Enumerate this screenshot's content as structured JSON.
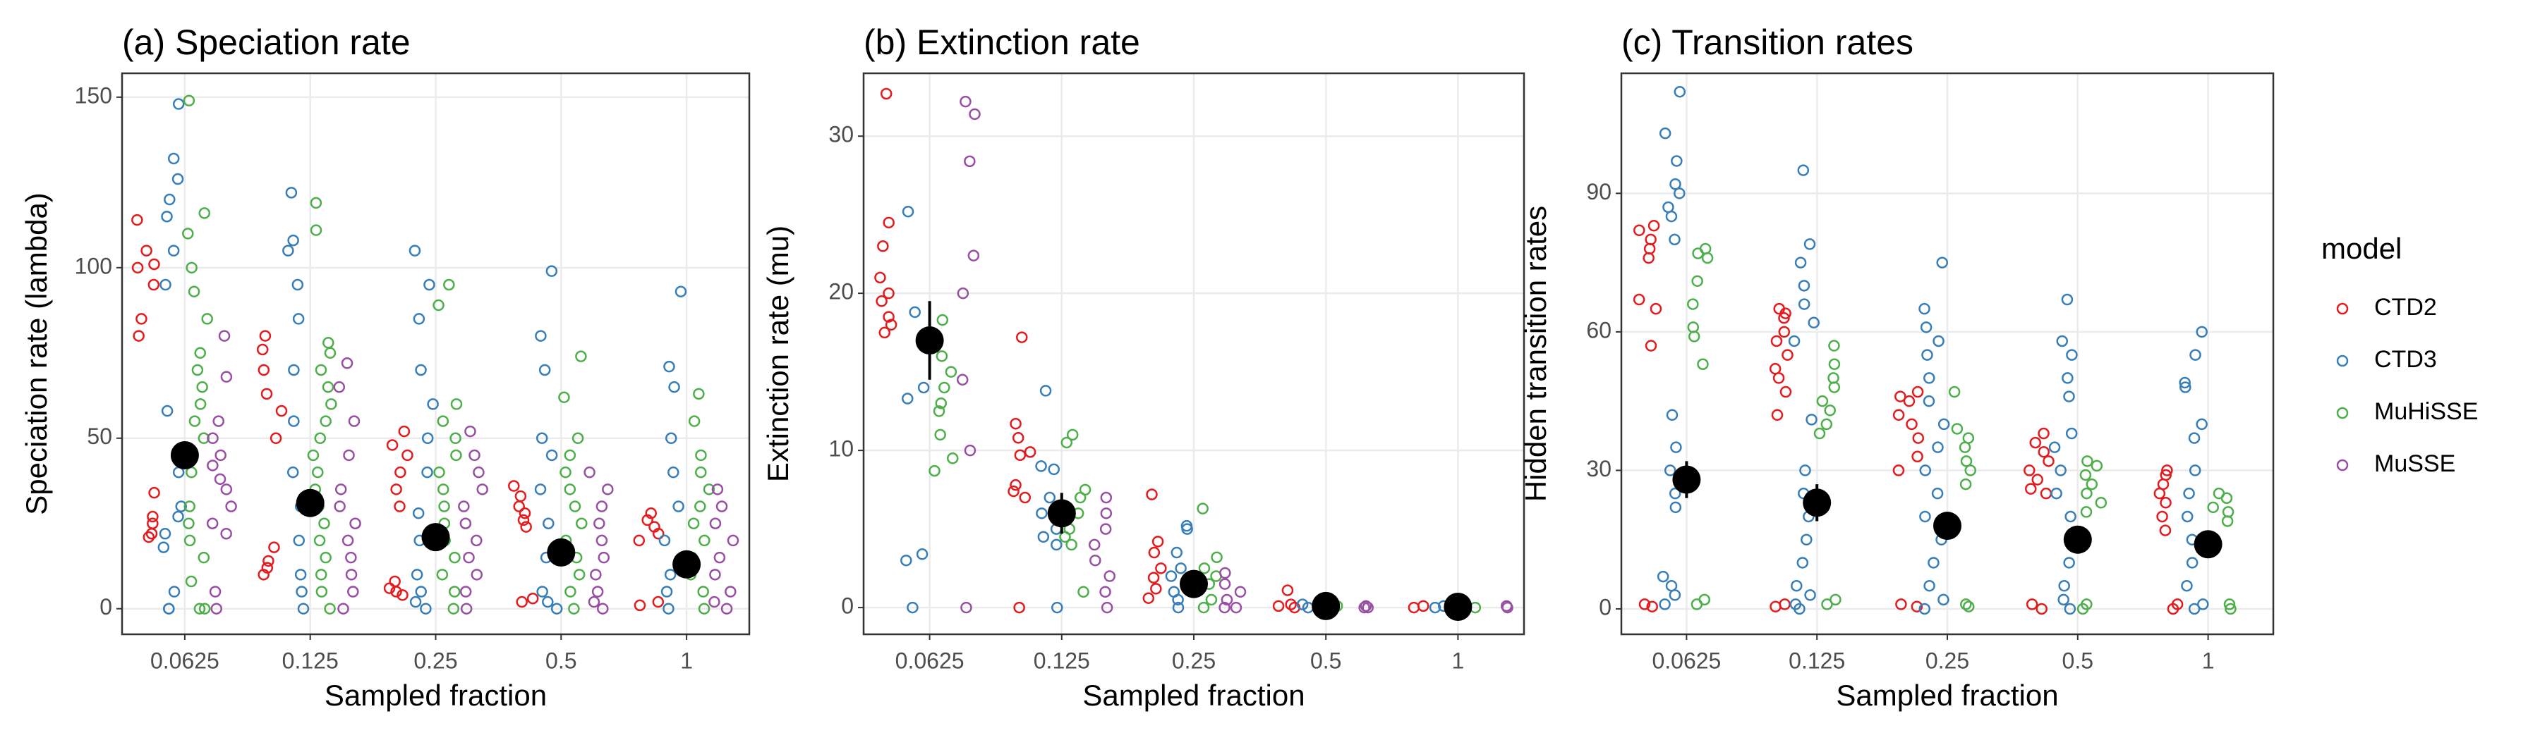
{
  "chart_data": [
    {
      "type": "scatter",
      "title": "(a) Speciation rate",
      "xlabel": "Sampled fraction",
      "ylabel": "Speciation rate (lambda)",
      "categories": [
        "0.0625",
        "0.125",
        "0.25",
        "0.5",
        "1"
      ],
      "ylim": [
        -7.5,
        157
      ],
      "yticks": [
        0,
        50,
        100,
        150
      ],
      "grid": true,
      "legend": "none",
      "series": [
        {
          "name": "CTD2",
          "color": "#e41a1c",
          "values": [
            [
              114,
              105,
              101,
              100,
              95,
              85,
              80,
              34,
              27,
              25,
              22,
              21
            ],
            [
              80,
              76,
              70,
              63,
              58,
              50,
              18,
              14,
              12,
              10
            ],
            [
              52,
              48,
              45,
              40,
              35,
              30,
              8,
              6,
              5,
              4
            ],
            [
              36,
              33,
              30,
              28,
              26,
              24,
              3,
              2
            ],
            [
              28,
              26,
              24,
              22,
              20,
              2,
              1
            ]
          ]
        },
        {
          "name": "CTD3",
          "color": "#377eb8",
          "values": [
            [
              148,
              132,
              126,
              120,
              115,
              105,
              95,
              58,
              40,
              30,
              27,
              22,
              18,
              5,
              0,
              0
            ],
            [
              122,
              108,
              105,
              95,
              85,
              70,
              55,
              40,
              30,
              20,
              10,
              5,
              0
            ],
            [
              105,
              95,
              85,
              70,
              60,
              50,
              40,
              28,
              20,
              10,
              5,
              2,
              0
            ],
            [
              99,
              80,
              70,
              50,
              45,
              35,
              25,
              15,
              5,
              2,
              0
            ],
            [
              93,
              71,
              65,
              50,
              40,
              30,
              20,
              10,
              5,
              0
            ]
          ]
        },
        {
          "name": "MuHiSSE",
          "color": "#4daf4a",
          "values": [
            [
              149,
              116,
              110,
              100,
              93,
              85,
              75,
              70,
              65,
              60,
              55,
              50,
              45,
              40,
              30,
              25,
              20,
              15,
              8,
              0,
              0
            ],
            [
              119,
              111,
              78,
              75,
              70,
              65,
              60,
              55,
              50,
              45,
              40,
              35,
              30,
              25,
              20,
              15,
              10,
              5,
              0
            ],
            [
              95,
              89,
              60,
              55,
              50,
              45,
              40,
              35,
              30,
              25,
              20,
              15,
              10,
              5,
              0
            ],
            [
              74,
              62,
              50,
              45,
              40,
              35,
              30,
              25,
              20,
              15,
              10,
              5,
              0
            ],
            [
              63,
              55,
              45,
              40,
              35,
              30,
              25,
              20,
              15,
              10,
              5,
              0
            ]
          ]
        },
        {
          "name": "MuSSE",
          "color": "#984ea3",
          "values": [
            [
              80,
              68,
              55,
              50,
              45,
              42,
              38,
              35,
              30,
              25,
              22,
              5,
              0
            ],
            [
              72,
              65,
              55,
              45,
              35,
              30,
              25,
              20,
              15,
              10,
              5,
              0
            ],
            [
              52,
              45,
              40,
              35,
              30,
              25,
              20,
              15,
              10,
              5,
              0
            ],
            [
              40,
              35,
              30,
              25,
              20,
              15,
              10,
              5,
              2,
              0
            ],
            [
              35,
              30,
              25,
              20,
              15,
              10,
              5,
              2,
              0
            ]
          ]
        }
      ],
      "summary": {
        "color": "#000000",
        "values": [
          45,
          31,
          21,
          16.5,
          13
        ],
        "errors": [
          3,
          3,
          2.5,
          2,
          2
        ]
      }
    },
    {
      "type": "scatter",
      "title": "(b) Extinction rate",
      "xlabel": "Sampled fraction",
      "ylabel": "Extinction rate (mu)",
      "categories": [
        "0.0625",
        "0.125",
        "0.25",
        "0.5",
        "1"
      ],
      "ylim": [
        -1.7,
        34
      ],
      "yticks": [
        0,
        10,
        20,
        30
      ],
      "grid": true,
      "legend": "none",
      "series": [
        {
          "name": "CTD2",
          "color": "#e41a1c",
          "values": [
            [
              32.7,
              24.5,
              23,
              21,
              20,
              19.5,
              18.5,
              18,
              17.5
            ],
            [
              17.2,
              11.7,
              10.8,
              9.9,
              9.7,
              7.8,
              7.4,
              7,
              0
            ],
            [
              7.2,
              4.2,
              3.5,
              2.5,
              1.9,
              1.2,
              0.6
            ],
            [
              1.1,
              0.2,
              0.1,
              0
            ],
            [
              0.1,
              0
            ]
          ]
        },
        {
          "name": "CTD3",
          "color": "#377eb8",
          "values": [
            [
              25.2,
              18.8,
              14,
              13.3,
              3.4,
              3,
              0
            ],
            [
              13.8,
              9,
              8.8,
              7,
              6,
              5,
              4.5,
              4,
              0
            ],
            [
              5.2,
              5,
              3.5,
              2.5,
              2,
              1,
              0.5,
              0
            ],
            [
              0.2,
              0.1,
              0
            ],
            [
              0.1,
              0
            ]
          ]
        },
        {
          "name": "MuHiSSE",
          "color": "#4daf4a",
          "values": [
            [
              18.3,
              16,
              15,
              14,
              13,
              12.5,
              11,
              9.5,
              8.7
            ],
            [
              11,
              10.5,
              7.5,
              7,
              6,
              5,
              4.5,
              4,
              1
            ],
            [
              6.3,
              3.2,
              2.5,
              2,
              1.5,
              0.5,
              0
            ],
            [
              0.1,
              0
            ],
            [
              0,
              0
            ]
          ]
        },
        {
          "name": "MuSSE",
          "color": "#984ea3",
          "values": [
            [
              32.2,
              31.4,
              28.4,
              22.4,
              20,
              14.5,
              10,
              0
            ],
            [
              7,
              6,
              5,
              4,
              3,
              2,
              1,
              0
            ],
            [
              2.2,
              1.5,
              1,
              0.5,
              0,
              0
            ],
            [
              0.1,
              0,
              0
            ],
            [
              0.1,
              0
            ]
          ]
        }
      ],
      "summary": {
        "color": "#000000",
        "values": [
          17,
          6,
          1.5,
          0.1,
          0.05
        ],
        "errors": [
          2.5,
          1.3,
          0.5,
          0.1,
          0.05
        ]
      }
    },
    {
      "type": "scatter",
      "title": "(c) Transition rates",
      "xlabel": "Sampled fraction",
      "ylabel": "Hidden transition rates",
      "categories": [
        "0.0625",
        "0.125",
        "0.25",
        "0.5",
        "1"
      ],
      "ylim": [
        -5.5,
        116
      ],
      "yticks": [
        0,
        30,
        60,
        90
      ],
      "grid": true,
      "legend": "right",
      "legend_title": "model",
      "series": [
        {
          "name": "CTD2",
          "color": "#e41a1c",
          "values": [
            [
              83,
              82,
              80,
              78,
              76,
              67,
              65,
              57,
              1,
              0.5
            ],
            [
              65,
              64,
              63,
              60,
              58,
              55,
              52,
              50,
              47,
              42,
              1,
              0.5
            ],
            [
              47,
              46,
              45,
              42,
              40,
              37,
              33,
              30,
              1,
              0.5
            ],
            [
              38,
              36,
              34,
              32,
              30,
              28,
              26,
              25,
              1,
              0
            ],
            [
              30,
              29,
              27,
              25,
              23,
              20,
              17,
              1,
              0
            ]
          ]
        },
        {
          "name": "CTD3",
          "color": "#377eb8",
          "values": [
            [
              112,
              103,
              97,
              92,
              90,
              87,
              85,
              80,
              42,
              35,
              30,
              25,
              22,
              7,
              5,
              3,
              1
            ],
            [
              95,
              79,
              75,
              70,
              66,
              62,
              58,
              41,
              30,
              25,
              20,
              15,
              10,
              5,
              3,
              1,
              0
            ],
            [
              75,
              65,
              61,
              58,
              55,
              50,
              45,
              40,
              35,
              30,
              25,
              20,
              15,
              10,
              5,
              2,
              0
            ],
            [
              67,
              58,
              55,
              50,
              46,
              38,
              35,
              30,
              25,
              20,
              15,
              10,
              5,
              2,
              0
            ],
            [
              60,
              55,
              49,
              48,
              40,
              37,
              30,
              25,
              20,
              15,
              10,
              5,
              1,
              0
            ]
          ]
        },
        {
          "name": "MuHiSSE",
          "color": "#4daf4a",
          "values": [
            [
              78,
              77,
              76,
              71,
              66,
              61,
              59,
              53,
              2,
              1
            ],
            [
              57,
              53,
              50,
              48,
              45,
              43,
              40,
              38,
              2,
              1
            ],
            [
              47,
              39,
              37,
              35,
              32,
              30,
              27,
              1,
              0.5
            ],
            [
              32,
              31,
              29,
              27,
              25,
              23,
              21,
              1,
              0
            ],
            [
              25,
              24,
              22,
              21,
              19,
              1,
              0
            ]
          ]
        },
        {
          "name": "MuSSE",
          "color": "#984ea3",
          "values": [
            [],
            [],
            [],
            [],
            []
          ]
        }
      ],
      "summary": {
        "color": "#000000",
        "values": [
          28,
          23,
          18,
          15,
          14
        ],
        "errors": [
          4,
          4,
          3,
          3,
          3
        ]
      }
    }
  ]
}
